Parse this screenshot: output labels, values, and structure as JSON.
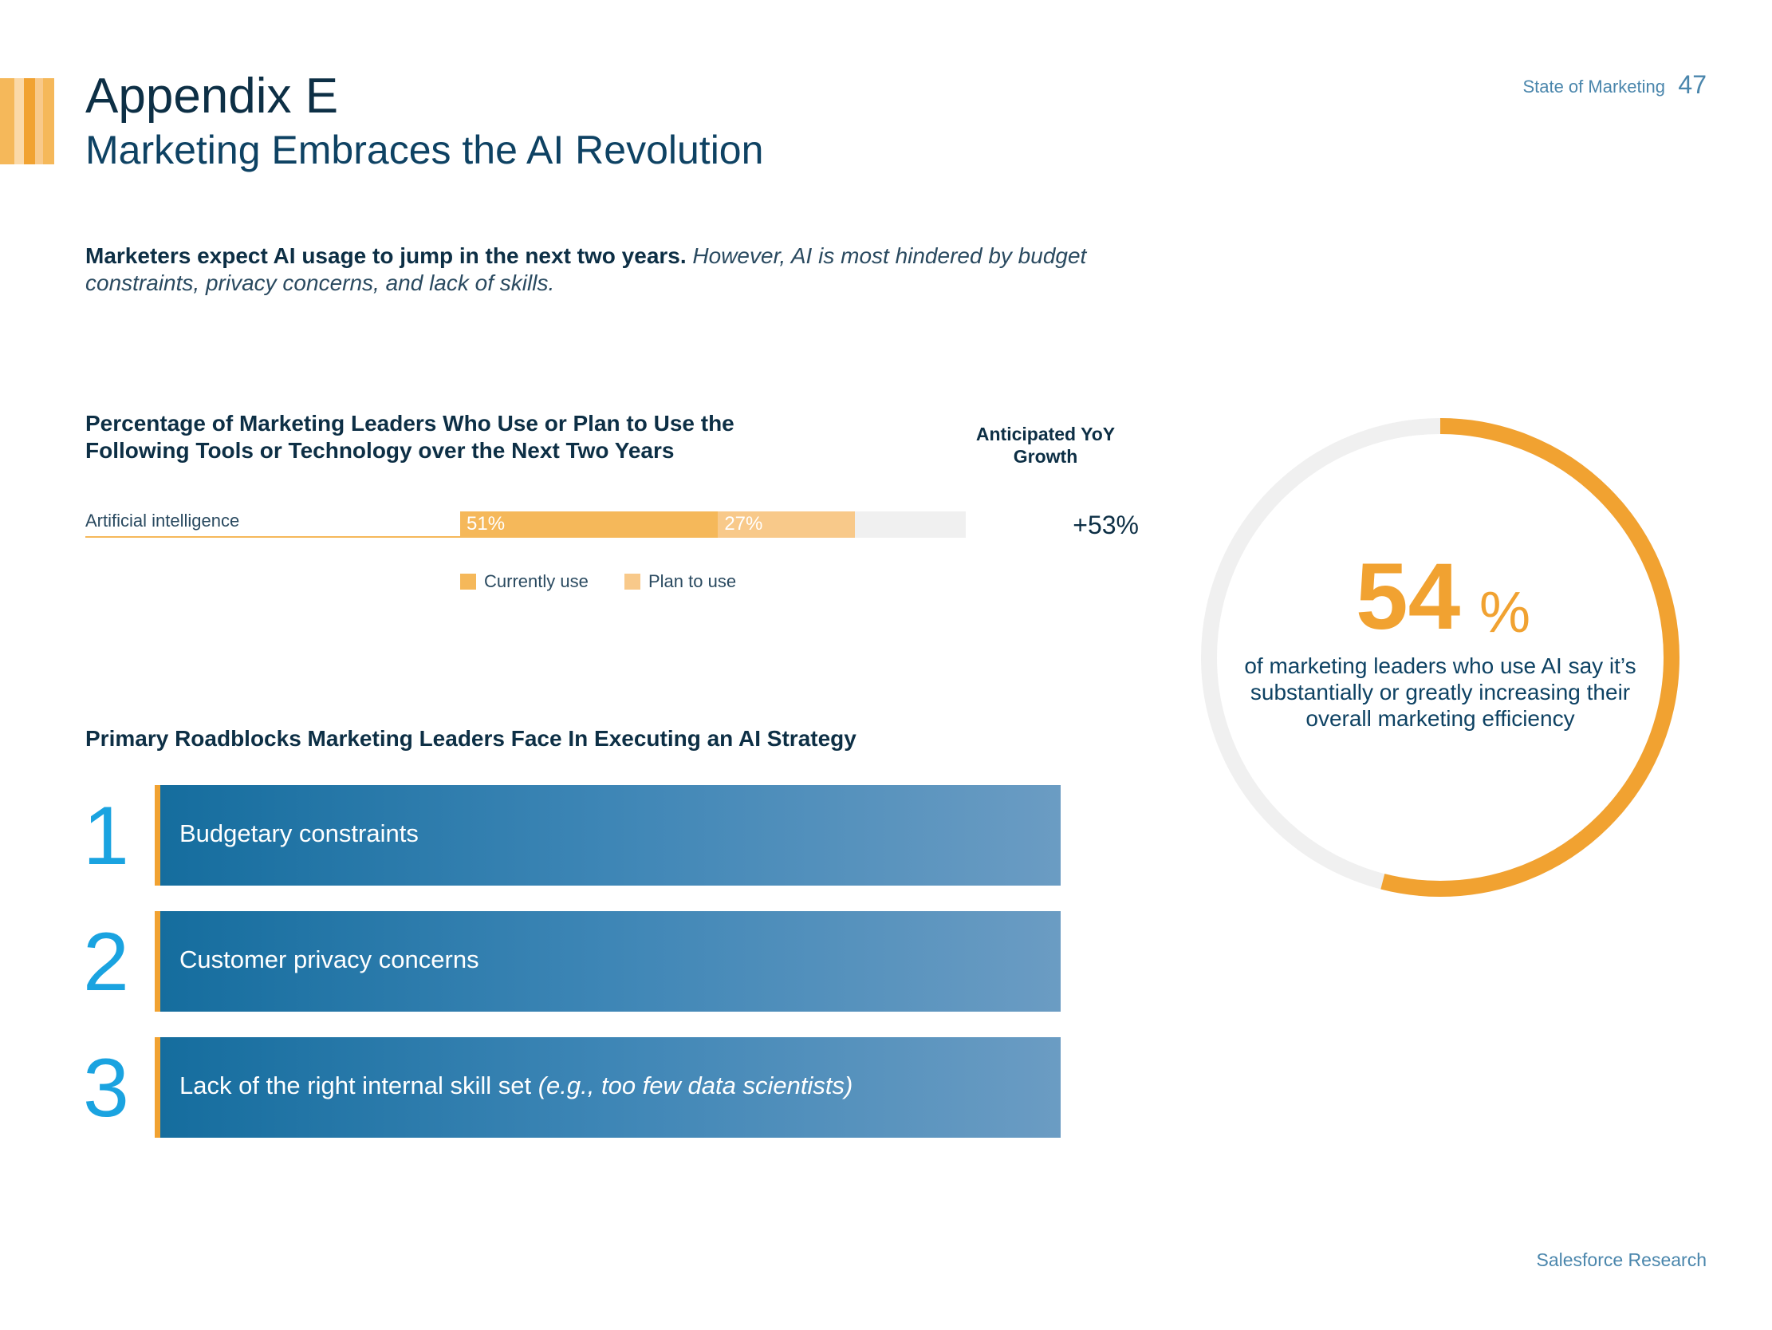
{
  "header": {
    "title": "Appendix E",
    "subtitle": "Marketing Embraces the AI Revolution",
    "running_head": "State of Marketing",
    "page_number": "47",
    "stripe_colors": [
      "#f5b85a",
      "#f8c98a",
      "#f1a231",
      "#fbd9a8",
      "#f5b85a"
    ]
  },
  "intro": {
    "bold": "Marketers expect AI usage to jump in the next two years.",
    "italic": "However, AI is most hindered by budget constraints, privacy concerns, and lack of skills."
  },
  "tools_chart": {
    "title": "Percentage of Marketing Leaders Who Use or Plan to Use the Following Tools or Technology over the Next Two Years",
    "growth_header": "Anticipated YoY Growth",
    "legend": [
      {
        "label": "Currently use",
        "color": "#f5b85a"
      },
      {
        "label": "Plan to use",
        "color": "#f8c98a"
      }
    ]
  },
  "chart_data": {
    "type": "bar",
    "orientation": "horizontal",
    "stacked": true,
    "categories": [
      "Artificial intelligence"
    ],
    "series": [
      {
        "name": "Currently use",
        "values": [
          51
        ],
        "labels": [
          "51%"
        ],
        "color": "#f5b85a"
      },
      {
        "name": "Plan to use",
        "values": [
          27
        ],
        "labels": [
          "27%"
        ],
        "color": "#f8c98a"
      }
    ],
    "xlim": [
      0,
      100
    ],
    "annotations": [
      {
        "category": "Artificial intelligence",
        "text": "+53%"
      }
    ],
    "legend_position": "bottom",
    "grid": false
  },
  "roadblocks": {
    "title": "Primary Roadblocks Marketing Leaders Face In Executing an AI Strategy",
    "items": [
      {
        "rank": "1",
        "label": "Budgetary constraints",
        "note": ""
      },
      {
        "rank": "2",
        "label": "Customer privacy concerns",
        "note": ""
      },
      {
        "rank": "3",
        "label": "Lack of the right internal skill set",
        "note": "(e.g., too few data scientists)"
      }
    ],
    "accent_color": "#f1a231",
    "number_color": "#1aa3e0"
  },
  "stat": {
    "value": 54,
    "number": "54",
    "unit": "%",
    "caption": "of marketing leaders who use AI say it’s substantially or greatly increasing their overall marketing efficiency",
    "ring_color": "#f1a231",
    "track_color": "#f0f0f0"
  },
  "footer": {
    "text": "Salesforce Research"
  }
}
